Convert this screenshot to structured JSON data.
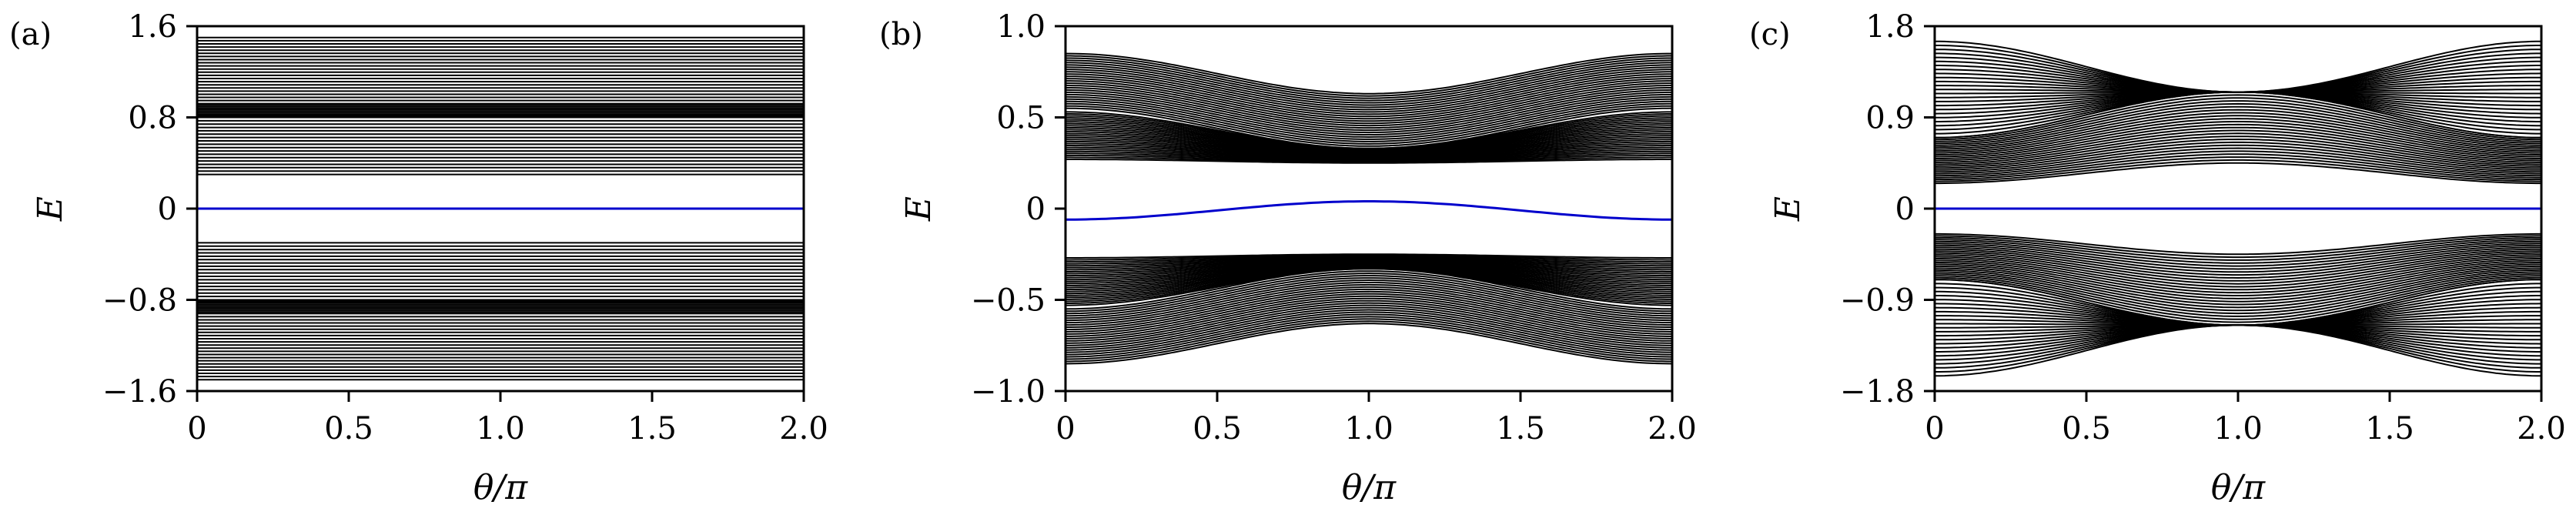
{
  "chart_data": [
    {
      "type": "line",
      "panel_label": "(a)",
      "xlabel": "θ/π",
      "ylabel": "E",
      "xlim": [
        0,
        2.0
      ],
      "ylim": [
        -1.6,
        1.6
      ],
      "xticks": [
        "0",
        "0.5",
        "1.0",
        "1.5",
        "2.0"
      ],
      "xtick_values": [
        0,
        0.5,
        1.0,
        1.5,
        2.0
      ],
      "yticks": [
        "−1.6",
        "−0.8",
        "0",
        "0.8",
        "1.6"
      ],
      "ytick_values": [
        -1.6,
        -0.8,
        0,
        0.8,
        1.6
      ],
      "grid": false,
      "band_color": "#000000",
      "edge_color": "#0000cc",
      "bands": {
        "model": "flat",
        "levels": [
          {
            "from": 0.3,
            "to": 0.8,
            "count": 18
          },
          {
            "from": 0.8,
            "to": 0.92,
            "count": 10
          },
          {
            "from": 0.92,
            "to": 1.5,
            "count": 22
          }
        ],
        "symmetric": true
      },
      "edge_state": {
        "value_at_0": 0.0,
        "amplitude": 0.0
      }
    },
    {
      "type": "line",
      "panel_label": "(b)",
      "xlabel": "θ/π",
      "ylabel": "E",
      "xlim": [
        0,
        2.0
      ],
      "ylim": [
        -1.0,
        1.0
      ],
      "xticks": [
        "0",
        "0.5",
        "1.0",
        "1.5",
        "2.0"
      ],
      "xtick_values": [
        0,
        0.5,
        1.0,
        1.5,
        2.0
      ],
      "yticks": [
        "−1.0",
        "−0.5",
        "0",
        "0.5",
        "1.0"
      ],
      "ytick_values": [
        -1.0,
        -0.5,
        0,
        0.5,
        1.0
      ],
      "grid": false,
      "band_color": "#000000",
      "edge_color": "#0000cc",
      "bands": {
        "model": "cosine",
        "count": 50,
        "inner_at_0": [
          0.27,
          0.53
        ],
        "inner_at_pi": [
          0.25,
          0.33
        ],
        "outer_at_0": [
          0.55,
          0.85
        ],
        "outer_at_pi": [
          0.33,
          0.63
        ],
        "symmetric": true
      },
      "edge_state": {
        "value_at_0": -0.06,
        "value_at_pi": 0.04
      }
    },
    {
      "type": "line",
      "panel_label": "(c)",
      "xlabel": "θ/π",
      "ylabel": "E",
      "xlim": [
        0,
        2.0
      ],
      "ylim": [
        -1.8,
        1.8
      ],
      "xticks": [
        "0",
        "0.5",
        "1.0",
        "1.5",
        "2.0"
      ],
      "xtick_values": [
        0,
        0.5,
        1.0,
        1.5,
        2.0
      ],
      "yticks": [
        "−1.8",
        "−0.9",
        "0",
        "0.9",
        "1.8"
      ],
      "ytick_values": [
        -1.8,
        -0.9,
        0,
        0.9,
        1.8
      ],
      "grid": false,
      "band_color": "#000000",
      "edge_color": "#0000cc",
      "bands": {
        "model": "cosine",
        "count": 50,
        "inner_at_0": [
          0.25,
          0.7
        ],
        "inner_at_pi": [
          0.45,
          1.15
        ],
        "outer_at_0": [
          0.7,
          1.65
        ],
        "outer_at_pi": [
          1.15,
          1.15
        ],
        "symmetric": true
      },
      "edge_state": {
        "value_at_0": 0.0,
        "value_at_pi": 0.0
      }
    }
  ]
}
